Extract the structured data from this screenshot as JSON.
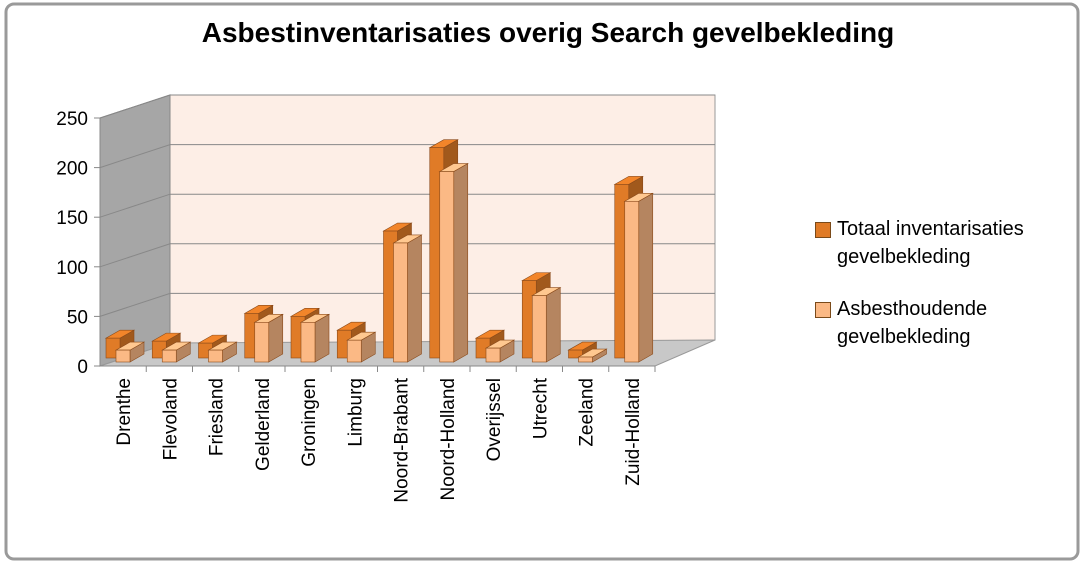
{
  "chart_data": {
    "type": "bar3d",
    "title": "Asbestinventarisaties overig Search gevelbekleding",
    "categories": [
      "Drenthe",
      "Flevoland",
      "Friesland",
      "Gelderland",
      "Groningen",
      "Limburg",
      "Noord-Brabant",
      "Noord-Holland",
      "Overijssel",
      "Utrecht",
      "Zeeland",
      "Zuid-Holland"
    ],
    "series": [
      {
        "name": "Totaal inventarisaties gevelbekleding",
        "color": "#e07b27",
        "values": [
          20,
          17,
          15,
          45,
          42,
          28,
          128,
          212,
          20,
          78,
          8,
          175
        ]
      },
      {
        "name": "Asbesthoudende gevelbekleding",
        "color": "#fbb985",
        "values": [
          12,
          12,
          12,
          40,
          40,
          22,
          120,
          192,
          14,
          67,
          5,
          162
        ]
      }
    ],
    "ylim": [
      0,
      250
    ],
    "yticks": [
      0,
      50,
      100,
      150,
      200,
      250
    ],
    "grid": true,
    "legend": "right"
  }
}
